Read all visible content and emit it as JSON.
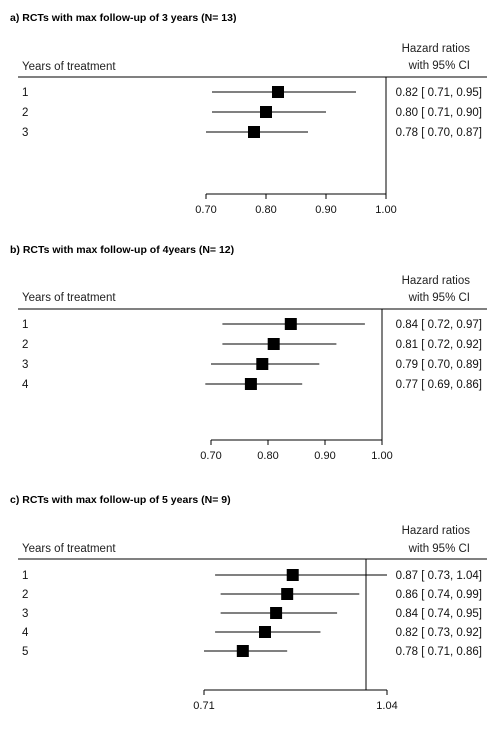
{
  "chart_data": [
    {
      "type": "forest",
      "title": "a) RCTs with max follow-up of 3 years (N= 13)",
      "row_header": "Years of treatment",
      "ci_header": [
        "Hazard ratios",
        "with 95% CI"
      ],
      "xlim": [
        0.7,
        1.0
      ],
      "xticks": [
        "0.70",
        "0.80",
        "0.90",
        "1.00"
      ],
      "reference_line": 1.0,
      "rows": [
        {
          "label": "1",
          "hr": 0.82,
          "lo": 0.71,
          "hi": 0.95,
          "text": "0.82 [ 0.71, 0.95]"
        },
        {
          "label": "2",
          "hr": 0.8,
          "lo": 0.71,
          "hi": 0.9,
          "text": "0.80 [ 0.71, 0.90]"
        },
        {
          "label": "3",
          "hr": 0.78,
          "lo": 0.7,
          "hi": 0.87,
          "text": "0.78 [ 0.70, 0.87]"
        }
      ]
    },
    {
      "type": "forest",
      "title": "b) RCTs with max follow-up of 4years (N= 12)",
      "row_header": "Years of treatment",
      "ci_header": [
        "Hazard ratios",
        "with 95% CI"
      ],
      "xlim": [
        0.7,
        1.0
      ],
      "xticks": [
        "0.70",
        "0.80",
        "0.90",
        "1.00"
      ],
      "reference_line": 1.0,
      "rows": [
        {
          "label": "1",
          "hr": 0.84,
          "lo": 0.72,
          "hi": 0.97,
          "text": "0.84 [ 0.72, 0.97]"
        },
        {
          "label": "2",
          "hr": 0.81,
          "lo": 0.72,
          "hi": 0.92,
          "text": "0.81 [ 0.72, 0.92]"
        },
        {
          "label": "3",
          "hr": 0.79,
          "lo": 0.7,
          "hi": 0.89,
          "text": "0.79 [ 0.70, 0.89]"
        },
        {
          "label": "4",
          "hr": 0.77,
          "lo": 0.69,
          "hi": 0.86,
          "text": "0.77 [ 0.69, 0.86]"
        }
      ]
    },
    {
      "type": "forest",
      "title": "c) RCTs with max follow-up of 5 years (N= 9)",
      "row_header": "Years of treatment",
      "ci_header": [
        "Hazard ratios",
        "with 95% CI"
      ],
      "xlim": [
        0.71,
        1.04
      ],
      "xticks": [
        "0.71",
        "1.04"
      ],
      "reference_line": 1.0,
      "rows": [
        {
          "label": "1",
          "hr": 0.87,
          "lo": 0.73,
          "hi": 1.04,
          "text": "0.87 [ 0.73, 1.04]"
        },
        {
          "label": "2",
          "hr": 0.86,
          "lo": 0.74,
          "hi": 0.99,
          "text": "0.86 [ 0.74, 0.99]"
        },
        {
          "label": "3",
          "hr": 0.84,
          "lo": 0.74,
          "hi": 0.95,
          "text": "0.84 [ 0.74, 0.95]"
        },
        {
          "label": "4",
          "hr": 0.82,
          "lo": 0.73,
          "hi": 0.92,
          "text": "0.82 [ 0.73, 0.92]"
        },
        {
          "label": "5",
          "hr": 0.78,
          "lo": 0.71,
          "hi": 0.86,
          "text": "0.78 [ 0.71, 0.86]"
        }
      ]
    }
  ]
}
